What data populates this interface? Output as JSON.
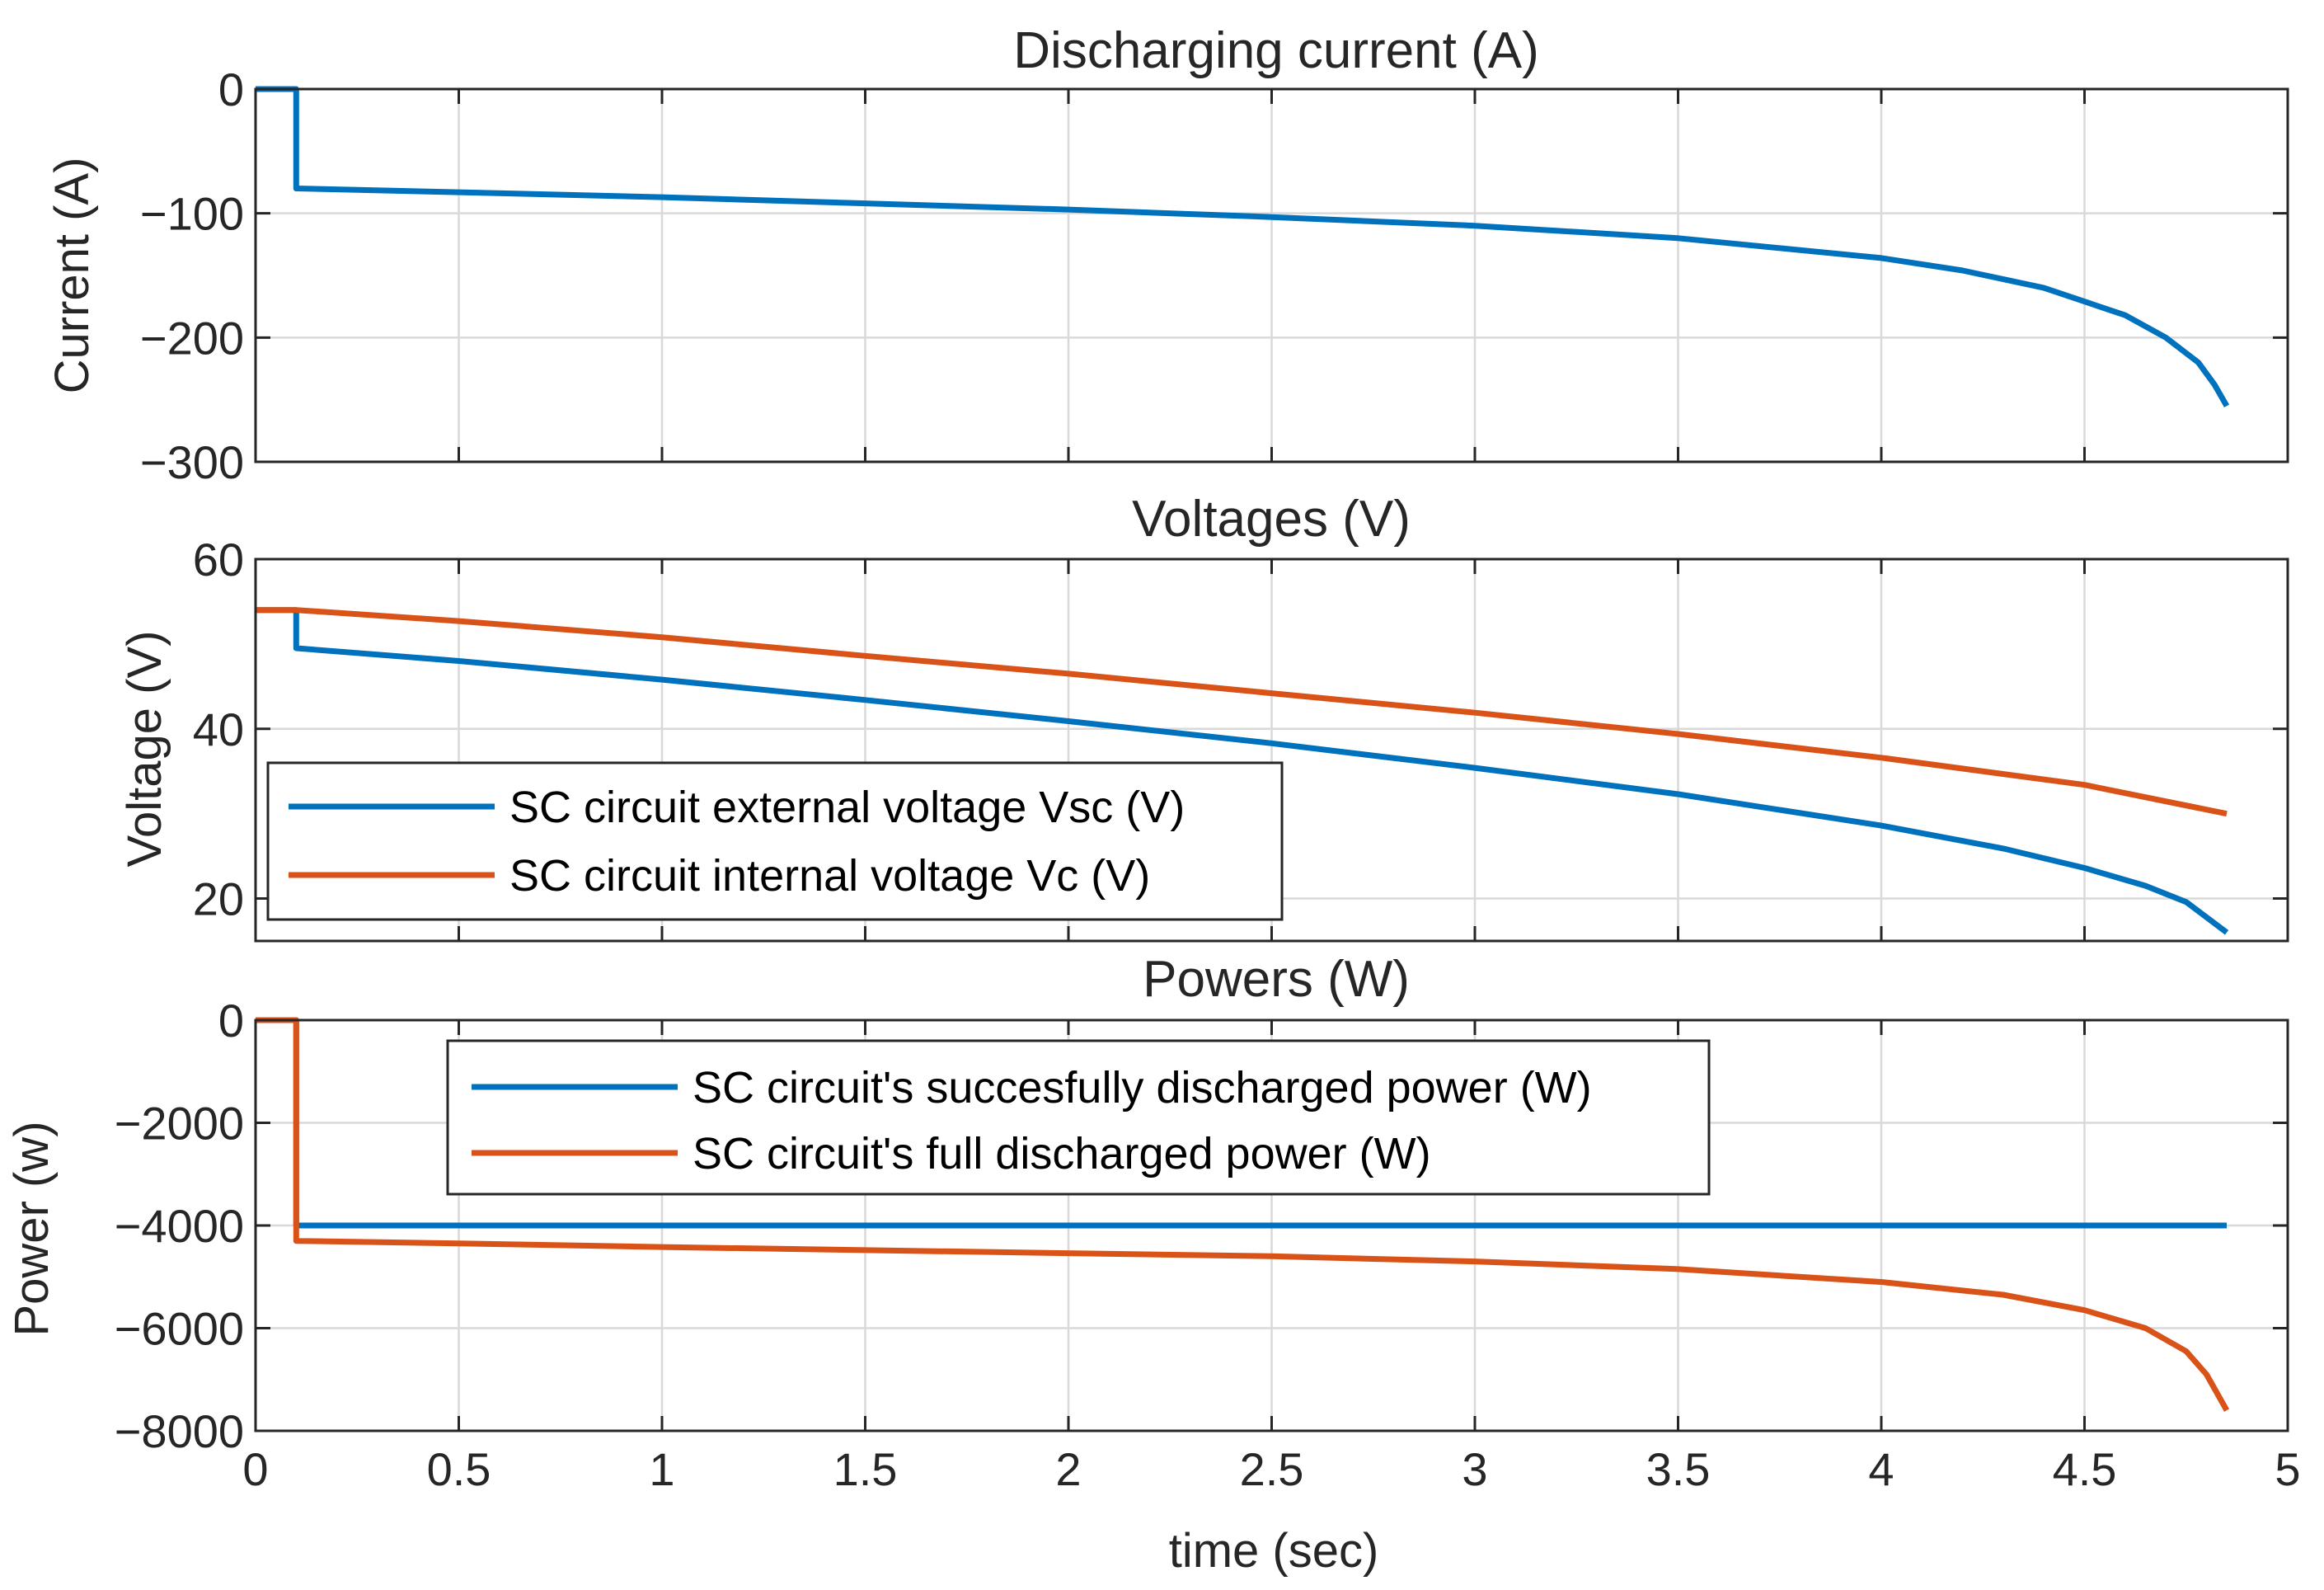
{
  "chart_data": [
    {
      "type": "line",
      "title": "Discharging current (A)",
      "ylabel": "Current (A)",
      "xlim": [
        0,
        5
      ],
      "ylim": [
        -300,
        0
      ],
      "yticks": [
        0,
        -100,
        -200,
        -300
      ],
      "ytick_labels": [
        "0",
        "−100",
        "−200",
        "−300"
      ],
      "grid": true,
      "series": [
        {
          "name": "Discharging current",
          "color": "#0072BD",
          "x": [
            0,
            0.1,
            0.1,
            0.5,
            1.0,
            1.5,
            2.0,
            2.5,
            3.0,
            3.5,
            4.0,
            4.2,
            4.4,
            4.6,
            4.7,
            4.78,
            4.82,
            4.85
          ],
          "y": [
            0,
            0,
            -80,
            -83,
            -87,
            -92,
            -97,
            -103,
            -110,
            -120,
            -136,
            -146,
            -160,
            -182,
            -200,
            -220,
            -238,
            -255
          ]
        }
      ]
    },
    {
      "type": "line",
      "title": "Voltages (V)",
      "ylabel": "Voltage (V)",
      "xlim": [
        0,
        5
      ],
      "ylim": [
        15,
        60
      ],
      "yticks": [
        20,
        40,
        60
      ],
      "ytick_labels": [
        "20",
        "40",
        "60"
      ],
      "grid": true,
      "legend": {
        "position": "bottom-left"
      },
      "series": [
        {
          "name": "SC circuit external voltage Vsc (V)",
          "color": "#0072BD",
          "x": [
            0,
            0.1,
            0.1,
            0.5,
            1.0,
            1.5,
            2.0,
            2.5,
            3.0,
            3.5,
            4.0,
            4.3,
            4.5,
            4.65,
            4.75,
            4.85
          ],
          "y": [
            54,
            54,
            49.5,
            48.0,
            45.8,
            43.4,
            40.9,
            38.3,
            35.4,
            32.3,
            28.6,
            25.9,
            23.6,
            21.5,
            19.6,
            16.0
          ]
        },
        {
          "name": "SC circuit internal voltage Vc (V)",
          "color": "#D95319",
          "x": [
            0,
            0.1,
            0.5,
            1.0,
            1.5,
            2.0,
            2.5,
            3.0,
            3.5,
            4.0,
            4.5,
            4.85
          ],
          "y": [
            54,
            54,
            52.7,
            50.8,
            48.6,
            46.5,
            44.2,
            41.9,
            39.4,
            36.6,
            33.4,
            30.0
          ]
        }
      ]
    },
    {
      "type": "line",
      "title": "Powers (W)",
      "ylabel": "Power (w)",
      "xlabel": "time (sec)",
      "xlim": [
        0,
        5
      ],
      "ylim": [
        -8000,
        0
      ],
      "xticks": [
        0,
        0.5,
        1,
        1.5,
        2,
        2.5,
        3,
        3.5,
        4,
        4.5,
        5
      ],
      "xtick_labels": [
        "0",
        "0.5",
        "1",
        "1.5",
        "2",
        "2.5",
        "3",
        "3.5",
        "4",
        "4.5",
        "5"
      ],
      "yticks": [
        0,
        -2000,
        -4000,
        -6000,
        -8000
      ],
      "ytick_labels": [
        "0",
        "−2000",
        "−4000",
        "−6000",
        "−8000"
      ],
      "grid": true,
      "legend": {
        "position": "top-center"
      },
      "series": [
        {
          "name": "SC circuit's succesfully discharged power (W)",
          "color": "#0072BD",
          "x": [
            0,
            0.1,
            0.1,
            4.85
          ],
          "y": [
            0,
            0,
            -4000,
            -4000
          ]
        },
        {
          "name": "SC circuit's full discharged power (W)",
          "color": "#D95319",
          "x": [
            0,
            0.1,
            0.1,
            0.5,
            1.0,
            1.5,
            2.0,
            2.5,
            3.0,
            3.5,
            4.0,
            4.3,
            4.5,
            4.65,
            4.75,
            4.8,
            4.85
          ],
          "y": [
            0,
            0,
            -4300,
            -4350,
            -4420,
            -4480,
            -4540,
            -4600,
            -4700,
            -4850,
            -5100,
            -5350,
            -5650,
            -6000,
            -6450,
            -6900,
            -7600
          ]
        }
      ]
    }
  ]
}
